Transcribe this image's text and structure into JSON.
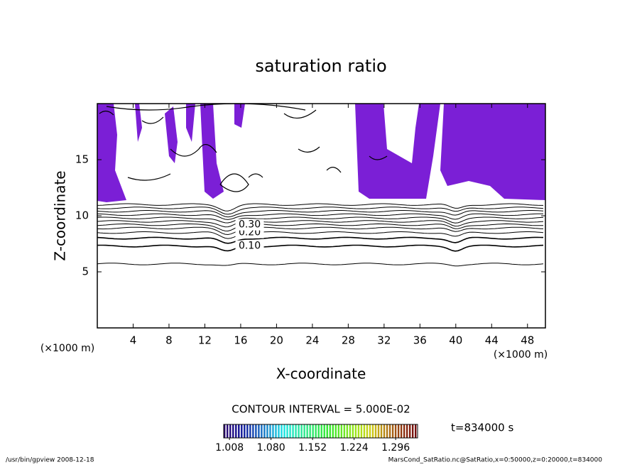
{
  "chart_data": {
    "type": "contour",
    "title": "saturation ratio",
    "xlabel": "X-coordinate",
    "ylabel": "Z-coordinate",
    "xunit": "(×1000 m)",
    "yunit": "(×1000 m)",
    "xlim": [
      0,
      50
    ],
    "ylim": [
      0,
      20
    ],
    "xticks": [
      4,
      8,
      12,
      16,
      20,
      24,
      28,
      32,
      36,
      40,
      44,
      48
    ],
    "yticks": [
      5,
      10,
      15
    ],
    "contour_z": [
      5.7,
      7.3,
      8.0,
      8.5,
      8.9,
      9.2,
      9.5,
      9.8,
      10.1,
      10.4,
      10.7,
      11.0
    ],
    "contour_levels": [
      0.1,
      0.2,
      0.3
    ],
    "contour_level_labels": [
      "0.10",
      "0.20",
      "0.30"
    ],
    "contour_level_z": [
      7.3,
      8.5,
      9.2
    ],
    "contour_interval": "CONTOUR INTERVAL = 5.000E-02",
    "clim": [
      0.998,
      1.334
    ],
    "cticks": [
      1.008,
      {
        "value": 1.08,
        "label": "1.080"
      },
      1.152,
      1.224,
      1.296
    ],
    "shade_color": "#7b1fd6",
    "time_label": "t=834000 s",
    "footer_left": "/usr/bin/gpview   2008-12-18",
    "footer_right": "MarsCond_SatRatio.nc@SatRatio,x=0:50000,z=0:20000,t=834000"
  }
}
